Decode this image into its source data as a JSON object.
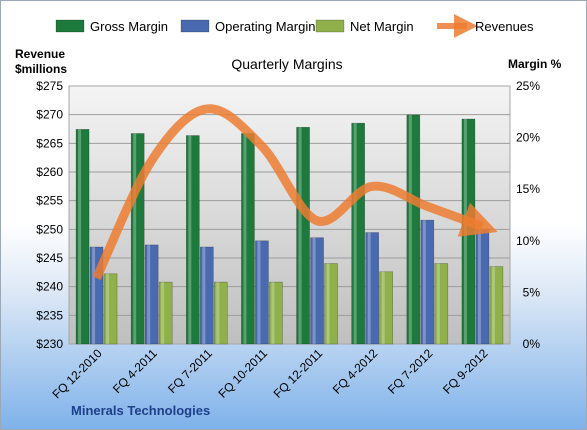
{
  "chart_data": {
    "type": "bar",
    "title": "Quarterly Margins",
    "company": "Minerals Technologies",
    "left_axis_title": [
      "Revenue",
      "$millions"
    ],
    "right_axis_title": "Margin %",
    "categories": [
      "FQ 12-2010",
      "FQ 4-2011",
      "FQ 7-2011",
      "FQ 10-2011",
      "FQ 12-2011",
      "FQ 4-2012",
      "FQ 7-2012",
      "FQ 9-2012"
    ],
    "left_axis": {
      "min": 230,
      "max": 275,
      "step": 5,
      "tick_labels": [
        "$230",
        "$235",
        "$240",
        "$245",
        "$250",
        "$255",
        "$260",
        "$265",
        "$270",
        "$275"
      ]
    },
    "right_axis": {
      "min": 0,
      "max": 25,
      "step": 5,
      "tick_labels": [
        "0%",
        "5%",
        "10%",
        "15%",
        "20%",
        "25%"
      ]
    },
    "series": [
      {
        "name": "Gross Margin",
        "kind": "bar",
        "axis": "right",
        "color": "#1e7a3c",
        "values": [
          20.8,
          20.4,
          20.2,
          20.4,
          21.0,
          21.4,
          22.2,
          21.8
        ]
      },
      {
        "name": "Operating Margin",
        "kind": "bar",
        "axis": "right",
        "color": "#4a6ab0",
        "values": [
          9.4,
          9.6,
          9.4,
          10.0,
          10.3,
          10.8,
          12.0,
          11.1
        ]
      },
      {
        "name": "Net Margin",
        "kind": "bar",
        "axis": "right",
        "color": "#8fb04a",
        "values": [
          6.8,
          6.0,
          6.0,
          6.0,
          7.8,
          7.0,
          7.8,
          7.5
        ]
      },
      {
        "name": "Revenues",
        "kind": "line",
        "axis": "left",
        "color": "#ed7d31",
        "values": [
          241.5,
          262.0,
          271.0,
          264.5,
          251.5,
          257.5,
          254.0,
          250.5
        ]
      }
    ],
    "legend_position": "top",
    "grid": true
  }
}
